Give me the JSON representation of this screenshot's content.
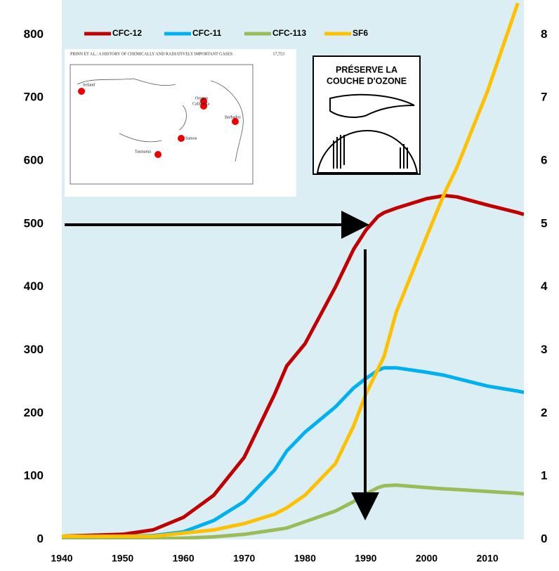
{
  "chart_data": {
    "type": "line",
    "x": [
      1940,
      1950,
      1955,
      1960,
      1965,
      1970,
      1975,
      1977,
      1980,
      1985,
      1988,
      1990,
      1992,
      1993,
      1995,
      2000,
      2003,
      2005,
      2010,
      2015,
      2016
    ],
    "series": [
      {
        "name": "CFC-12",
        "color": "#c00000",
        "values": [
          5,
          8,
          15,
          35,
          70,
          130,
          230,
          275,
          310,
          400,
          460,
          490,
          512,
          518,
          525,
          540,
          545,
          543,
          530,
          518,
          515
        ]
      },
      {
        "name": "CFC-11",
        "color": "#00b0f0",
        "values": [
          5,
          5,
          6,
          12,
          30,
          60,
          110,
          140,
          170,
          210,
          240,
          255,
          268,
          272,
          272,
          265,
          260,
          255,
          243,
          235,
          233
        ]
      },
      {
        "name": "CFC-113",
        "color": "#9bbb59",
        "values": [
          0,
          0,
          1,
          2,
          4,
          8,
          15,
          18,
          28,
          45,
          60,
          72,
          82,
          85,
          86,
          82,
          80,
          79,
          76,
          73,
          72
        ]
      },
      {
        "name": "SF6",
        "color": "#ffc000",
        "axis": "y2",
        "values": [
          0.05,
          0.05,
          0.05,
          0.1,
          0.15,
          0.25,
          0.4,
          0.5,
          0.7,
          1.2,
          1.8,
          2.3,
          2.7,
          2.9,
          3.6,
          4.8,
          5.5,
          5.9,
          7.1,
          8.5,
          null
        ]
      }
    ],
    "xlim": [
      1940,
      2016
    ],
    "xticks": [
      1940,
      1950,
      1960,
      1970,
      1980,
      1990,
      2000,
      2010
    ],
    "ylim": [
      0,
      855
    ],
    "yticks": [
      0,
      100,
      200,
      300,
      400,
      500,
      600,
      700,
      800
    ],
    "y2lim": [
      0,
      8.55
    ],
    "y2ticks": [
      0,
      1,
      2,
      3,
      4,
      5,
      6,
      7,
      8
    ],
    "background": "#daeef3",
    "legend": "top"
  },
  "inset_map": {
    "header": "PRINN ET AL.: A HISTORY OF CHEMICALLY AND RADIATIVELY IMPORTANT GASES",
    "page": "17,753",
    "stations": [
      "Ireland",
      "Oregon",
      "California",
      "Barbados",
      "Samoa",
      "Tasmania"
    ]
  },
  "logo": {
    "line1": "PRÉSERVE LA",
    "line2": "COUCHE D'OZONE"
  }
}
